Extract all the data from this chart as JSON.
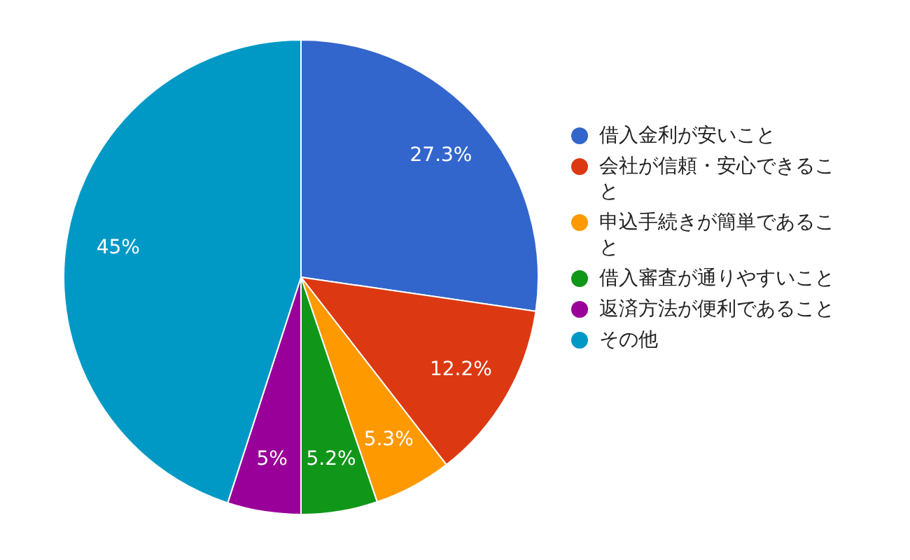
{
  "chart_data": {
    "type": "pie",
    "categories": [
      "借入金利が安いこと",
      "会社が信頼・安心できること",
      "申込手続きが簡単であること",
      "借入審査が通りやすいこと",
      "返済方法が便利であること",
      "その他"
    ],
    "values": [
      27.3,
      12.2,
      5.3,
      5.2,
      5,
      45
    ],
    "colors": [
      "#3366cc",
      "#dc3912",
      "#ff9900",
      "#109618",
      "#990099",
      "#0099c6"
    ],
    "value_labels": [
      "27.3%",
      "12.2%",
      "5.3%",
      "5.2%",
      "5%",
      "45%"
    ],
    "legend": "right"
  }
}
